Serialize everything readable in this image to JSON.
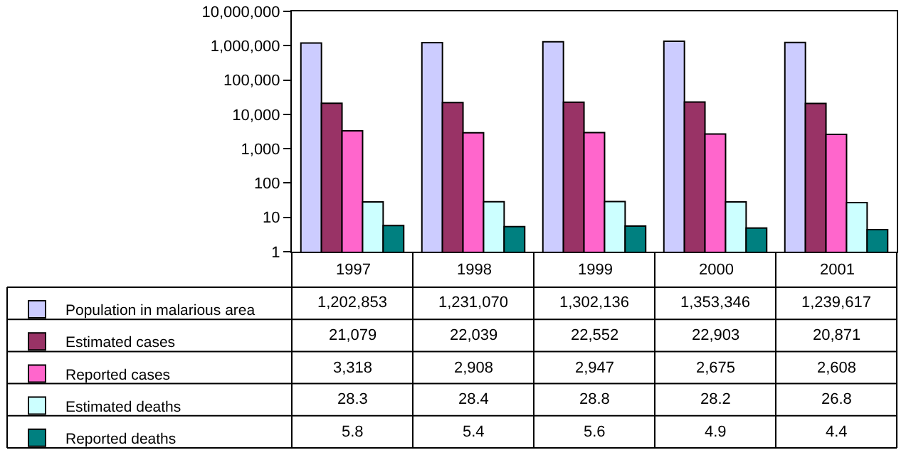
{
  "chart_data": {
    "type": "bar",
    "log": "y",
    "legend": "bottom left",
    "grid": false,
    "categories": [
      "1997",
      "1998",
      "1999",
      "2000",
      "2001"
    ],
    "ylim": [
      1,
      10000000
    ],
    "yticks": [
      1,
      10,
      100,
      {
        "value": 1000,
        "label": "1,000"
      },
      {
        "value": 10000,
        "label": "10,000"
      },
      {
        "value": 100000,
        "label": "100,000"
      },
      {
        "value": 1000000,
        "label": "1,000,000"
      },
      {
        "value": 10000000,
        "label": "10,000,000"
      }
    ],
    "series": [
      {
        "name": "Population in malarious area",
        "color": "#ccccff",
        "values": [
          1202853,
          1231070,
          1302136,
          1353346,
          1239617
        ],
        "value_labels": [
          "1,202,853",
          "1,231,070",
          "1,302,136",
          "1,353,346",
          "1,239,617"
        ]
      },
      {
        "name": "Estimated cases",
        "color": "#993366",
        "values": [
          21079,
          22039,
          22552,
          22903,
          20871
        ],
        "value_labels": [
          "21,079",
          "22,039",
          "22,552",
          "22,903",
          "20,871"
        ]
      },
      {
        "name": "Reported cases",
        "color": "#ff66cc",
        "values": [
          3318,
          2908,
          2947,
          2675,
          2608
        ],
        "value_labels": [
          "3,318",
          "2,908",
          "2,947",
          "2,675",
          "2,608"
        ]
      },
      {
        "name": "Estimated deaths",
        "color": "#ccffff",
        "values": [
          28.3,
          28.4,
          28.8,
          28.2,
          26.8
        ],
        "value_labels": [
          "28.3",
          "28.4",
          "28.8",
          "28.2",
          "26.8"
        ]
      },
      {
        "name": "Reported deaths",
        "color": "#008080",
        "values": [
          5.8,
          5.4,
          5.6,
          4.9,
          4.4
        ],
        "value_labels": [
          "5.8",
          "5.4",
          "5.6",
          "4.9",
          "4.4"
        ]
      }
    ]
  }
}
